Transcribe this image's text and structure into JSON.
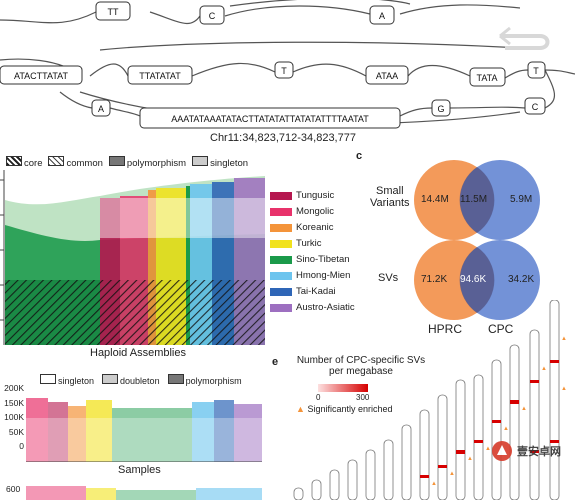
{
  "graph": {
    "sequences": [
      "TT",
      "C",
      "A",
      "ATACTTATAT",
      "TTATATAT",
      "T",
      "ATAA",
      "TATA",
      "T",
      "A",
      "AAATATAAATATACTTATATATTATATATTTTAATAT",
      "G",
      "C"
    ],
    "coordinate": "Chr11:34,823,712-34,823,777"
  },
  "panel_b": {
    "legend": [
      {
        "label": "core"
      },
      {
        "label": "common"
      },
      {
        "label": "polymorphism"
      },
      {
        "label": "singleton"
      }
    ],
    "xlabel": "Haploid Assemblies",
    "populations": [
      {
        "name": "Tungusic",
        "color": "#b5174f"
      },
      {
        "name": "Mongolic",
        "color": "#e8326b"
      },
      {
        "name": "Koreanic",
        "color": "#f4943a"
      },
      {
        "name": "Turkic",
        "color": "#f1e21e"
      },
      {
        "name": "Sino-Tibetan",
        "color": "#1a9a4a"
      },
      {
        "name": "Hmong-Mien",
        "color": "#6cc4ee"
      },
      {
        "name": "Tai-Kadai",
        "color": "#2f66b7"
      },
      {
        "name": "Austro-Asiatic",
        "color": "#9d6fc0"
      }
    ]
  },
  "panel_c": {
    "letter": "c",
    "rows": [
      {
        "label_line1": "Small",
        "label_line2": "Variants",
        "left": "14.4M",
        "mid": "11.5M",
        "right": "5.9M"
      },
      {
        "label_line1": "SVs",
        "label_line2": "",
        "left": "71.2K",
        "mid": "94.6K",
        "right": "34.2K"
      }
    ],
    "left_name": "HPRC",
    "right_name": "CPC",
    "colors": {
      "left": "#f39a5a",
      "right": "#5b7fd0",
      "overlap": "#4a4a7a"
    }
  },
  "panel_d": {
    "legend": [
      {
        "label": "singleton"
      },
      {
        "label": "doubleton"
      },
      {
        "label": "polymorphism"
      }
    ],
    "yticks": [
      "200K",
      "150K",
      "100K",
      "50K",
      "0"
    ],
    "xlabel": "Samples",
    "bottom_ytick": "600"
  },
  "panel_e": {
    "letter": "e",
    "title_line1": "Number of CPC-specific SVs",
    "title_line2": "per megabase",
    "scale_min": "0",
    "scale_max": "300",
    "enriched_label": "Significantly enriched"
  },
  "watermark": {
    "text": "壹安卓网"
  },
  "chart_data": {
    "type": "area",
    "title": "",
    "xlabel": "Haploid Assemblies",
    "series": [
      {
        "name": "core"
      },
      {
        "name": "common"
      },
      {
        "name": "polymorphism"
      },
      {
        "name": "singleton"
      }
    ]
  }
}
